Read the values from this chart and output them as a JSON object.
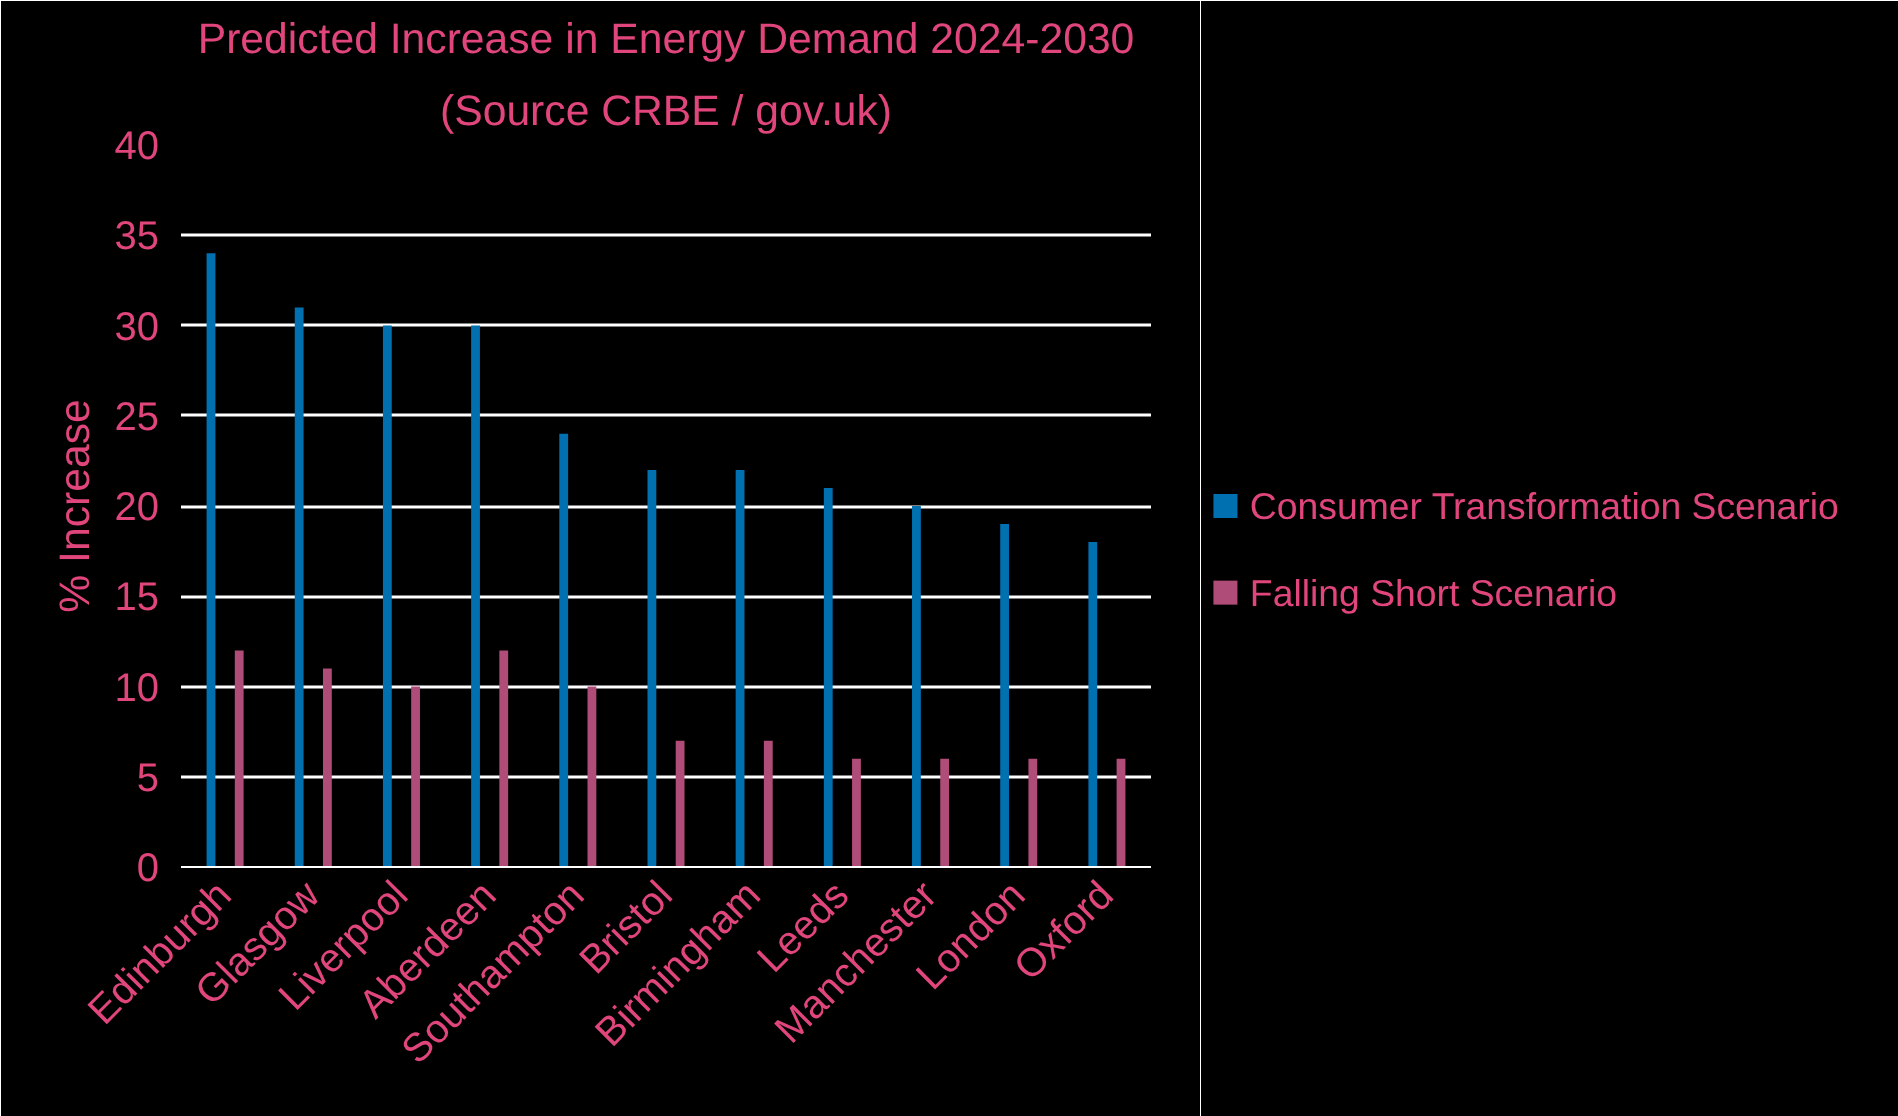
{
  "chart_data": {
    "type": "bar",
    "title": "Predicted Increase in Energy Demand 2024-2030",
    "subtitle": "(Source CRBE / gov.uk)",
    "ylabel": "% Increase",
    "categories": [
      "Edinburgh",
      "Glasgow",
      "Liverpool",
      "Aberdeen",
      "Southampton",
      "Bristol",
      "Birmingham",
      "Leeds",
      "Manchester",
      "London",
      "Oxford"
    ],
    "series": [
      {
        "name": "Consumer Transformation Scenario",
        "color": "#0070b0",
        "values": [
          34,
          31,
          30,
          30,
          24,
          22,
          22,
          21,
          20,
          19,
          18
        ]
      },
      {
        "name": "Falling Short Scenario",
        "color": "#b04c78",
        "values": [
          12,
          11,
          10,
          12,
          10,
          7,
          7,
          6,
          6,
          6,
          6
        ]
      }
    ],
    "ylim": [
      0,
      40
    ],
    "yticks": [
      0,
      5,
      10,
      15,
      20,
      25,
      30,
      35,
      40
    ],
    "grid": "y",
    "legend": "right"
  }
}
